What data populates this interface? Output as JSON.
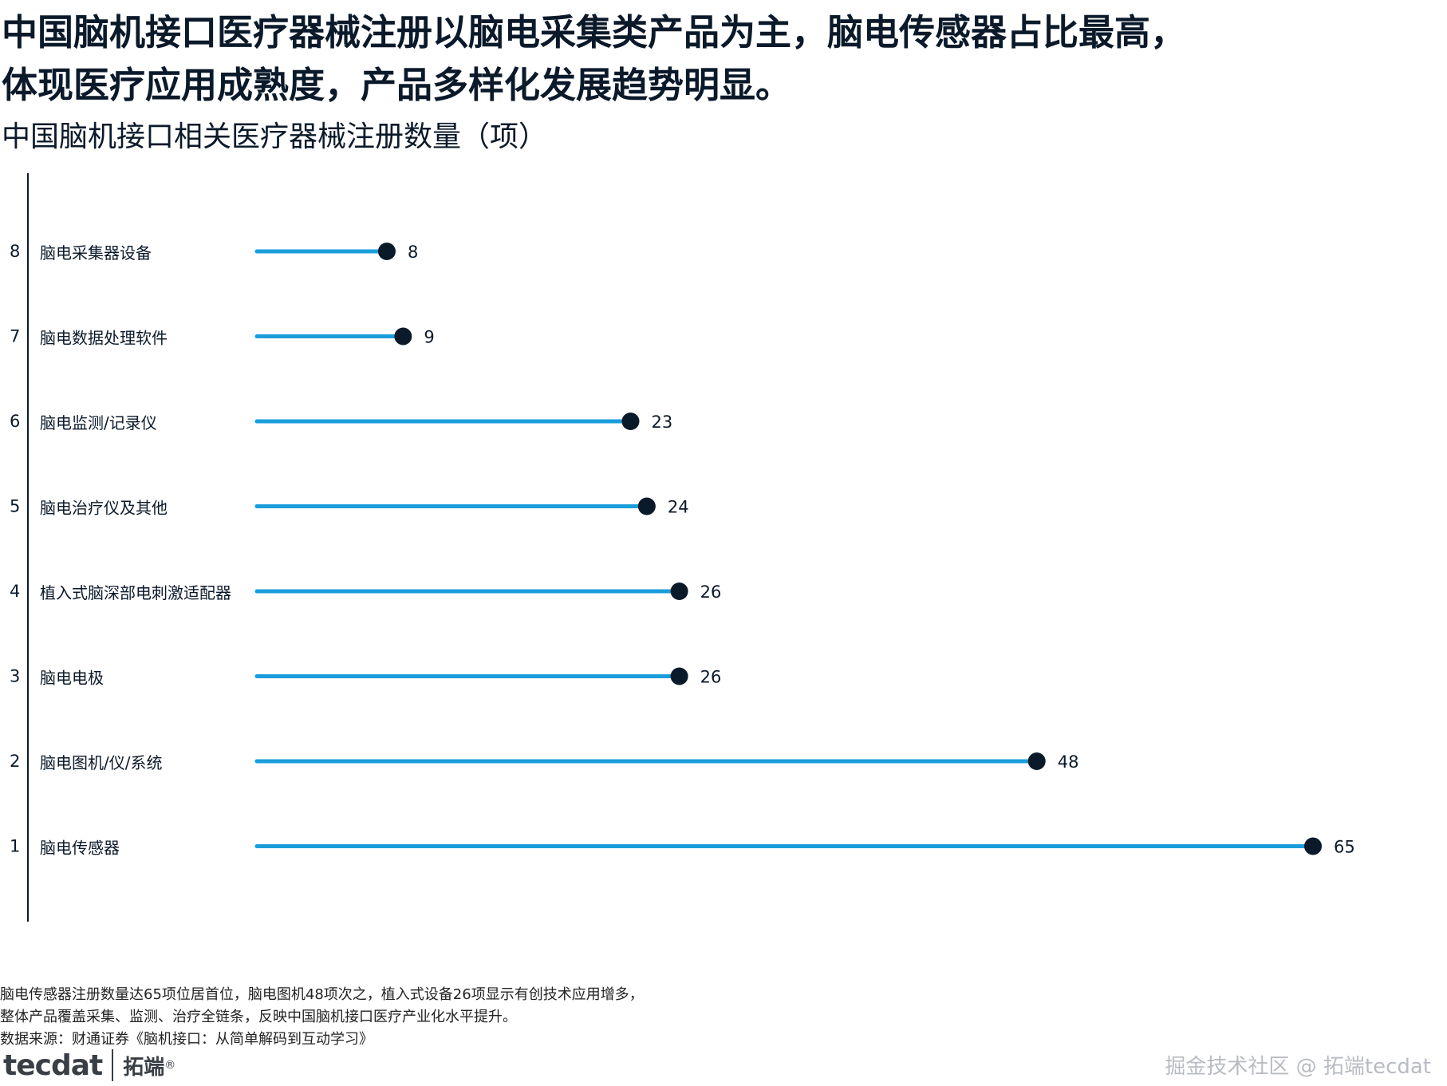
{
  "headline": {
    "line1": "中国脑机接口医疗器械注册以脑电采集类产品为主，脑电传感器占比最高，",
    "line2": "体现医疗应用成熟度，产品多样化发展趋势明显。"
  },
  "subtitle": "中国脑机接口相关医疗器械注册数量（项）",
  "chart_data": {
    "type": "bar",
    "style": "lollipop-horizontal",
    "title": "中国脑机接口相关医疗器械注册数量（项）",
    "xlabel": "",
    "ylabel": "",
    "xlim": [
      0,
      65
    ],
    "grid": false,
    "legend": "none",
    "colors": {
      "stem": "#1a9ddb",
      "dot": "#0b1a2a",
      "axis": "#0b1a2a"
    },
    "ranks": [
      "8",
      "7",
      "6",
      "5",
      "4",
      "3",
      "2",
      "1"
    ],
    "categories": [
      "脑电采集器设备",
      "脑电数据处理软件",
      "脑电监测/记录仪",
      "脑电治疗仪及其他",
      "植入式脑深部电刺激适配器",
      "脑电电极",
      "脑电图机/仪/系统",
      "脑电传感器"
    ],
    "values": [
      8,
      9,
      23,
      24,
      26,
      26,
      48,
      65
    ],
    "value_labels": [
      "8",
      "9",
      "23",
      "24",
      "26",
      "26",
      "48",
      "65"
    ]
  },
  "footnote": {
    "line1": "脑电传感器注册数量达65项位居首位，脑电图机48项次之，植入式设备26项显示有创技术应用增多，",
    "line2": "整体产品覆盖采集、监测、治疗全链条，反映中国脑机接口医疗产业化水平提升。",
    "source": "数据来源：财通证券《脑机接口：从简单解码到互动学习》"
  },
  "logo": {
    "mark": "tecdat",
    "name": "拓端",
    "reg": "®"
  },
  "watermark": "掘金技术社区 @ 拓端tecdat"
}
